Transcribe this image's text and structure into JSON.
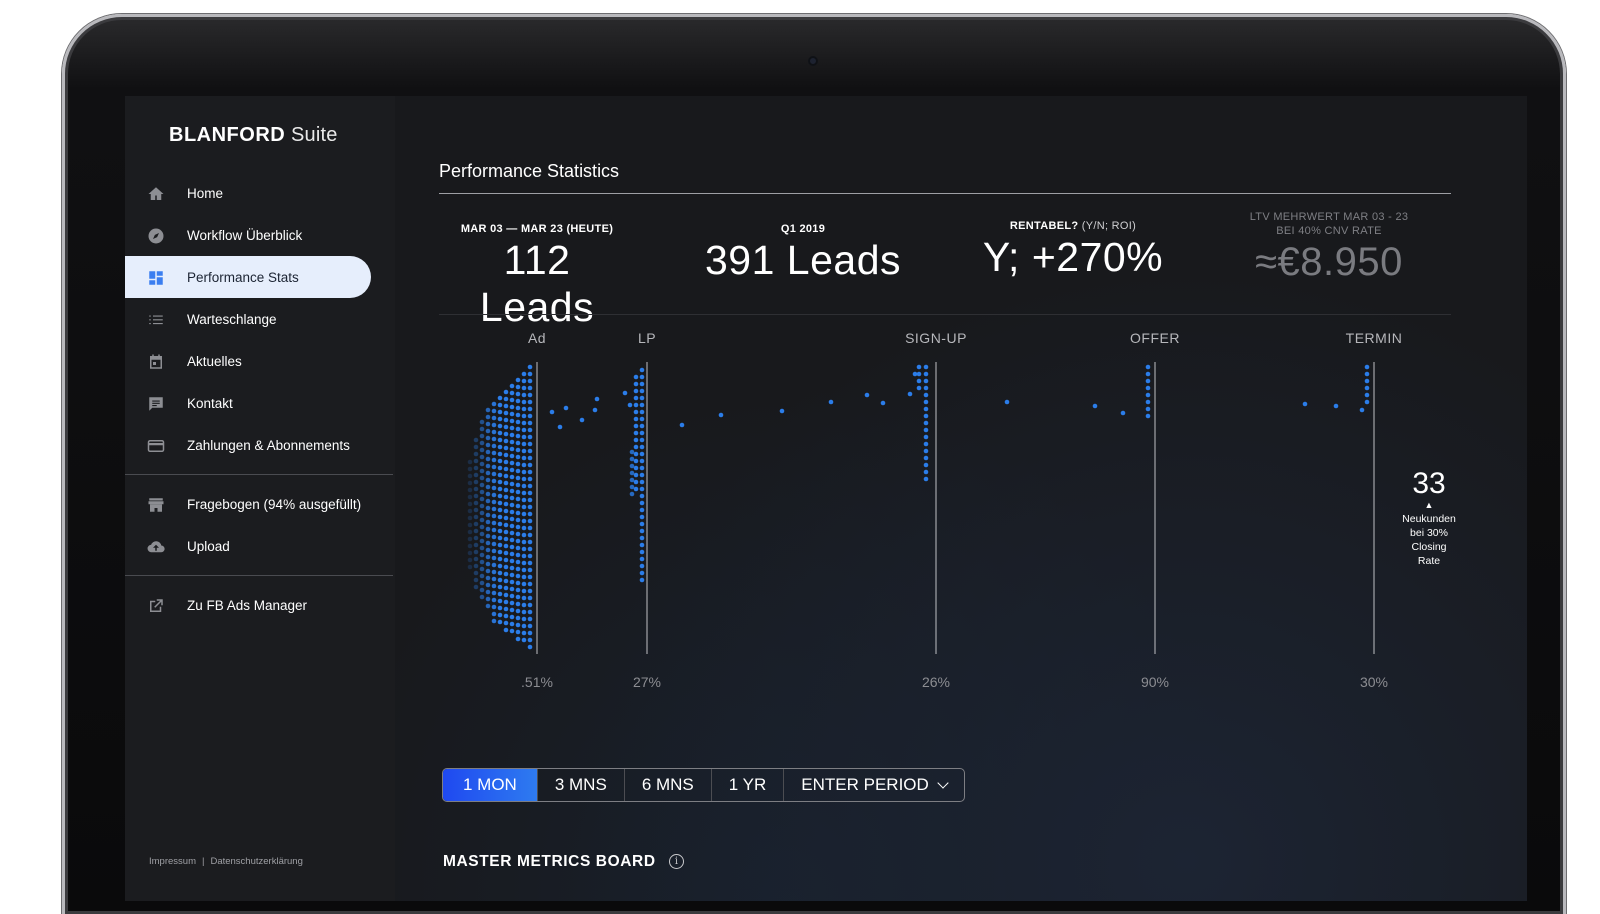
{
  "app": {
    "brand_bold": "BLANFORD",
    "brand_light": "Suite"
  },
  "sidebar": {
    "items": [
      {
        "label": "Home",
        "icon": "home-icon",
        "active": false
      },
      {
        "label": "Workflow Überblick",
        "icon": "compass-icon",
        "active": false
      },
      {
        "label": "Performance Stats",
        "icon": "dashboard-icon",
        "active": true
      },
      {
        "label": "Warteschlange",
        "icon": "list-icon",
        "active": false
      },
      {
        "label": "Aktuelles",
        "icon": "calendar-icon",
        "active": false
      },
      {
        "label": "Kontakt",
        "icon": "chat-icon",
        "active": false
      },
      {
        "label": "Zahlungen & Abonnements",
        "icon": "credit-card-icon",
        "active": false
      },
      {
        "label": "Fragebogen (94% ausgefüllt)",
        "icon": "store-icon",
        "active": false
      },
      {
        "label": "Upload",
        "icon": "cloud-upload-icon",
        "active": false
      },
      {
        "label": "Zu FB Ads Manager",
        "icon": "external-link-icon",
        "active": false
      }
    ],
    "footer": {
      "impressum": "Impressum",
      "separator": "|",
      "privacy": "Datenschutzerklärung"
    }
  },
  "main": {
    "title": "Performance Statistics",
    "kpis": [
      {
        "label": "MAR 03 — MAR 23 (HEUTE)",
        "value": "112 Leads"
      },
      {
        "label": "Q1 2019",
        "value": "391 Leads"
      },
      {
        "label_bold": "RENTABEL?",
        "label_light": "(Y/N; ROI)",
        "value": "Y; +270%"
      },
      {
        "label_line1": "LTV MEHRWERT MAR 03 - 23",
        "label_line2": "BEI 40% CNV RATE",
        "value": "≈€8.950"
      }
    ],
    "result": {
      "number": "33",
      "arrow": "▲",
      "caption_lines": [
        "Neukunden",
        "bei 30%",
        "Closing",
        "Rate"
      ]
    },
    "period": {
      "options": [
        "1 MON",
        "3 MNS",
        "6 MNS",
        "1 YR"
      ],
      "active": "1 MON",
      "custom_label": "ENTER PERIOD"
    },
    "board_title": "MASTER METRICS BOARD",
    "info_glyph": "i"
  },
  "colors": {
    "accent": "#2f7ff0",
    "dot": "#2b7de9",
    "active_nav_bg": "#e6eefc"
  },
  "chart_data": {
    "type": "scatter",
    "stages": [
      {
        "name": "Ad",
        "rate": ".51%"
      },
      {
        "name": "LP",
        "rate": "27%"
      },
      {
        "name": "SIGN-UP",
        "rate": "26%"
      },
      {
        "name": "OFFER",
        "rate": "90%"
      },
      {
        "name": "TERMIN",
        "rate": "30%"
      }
    ]
  }
}
